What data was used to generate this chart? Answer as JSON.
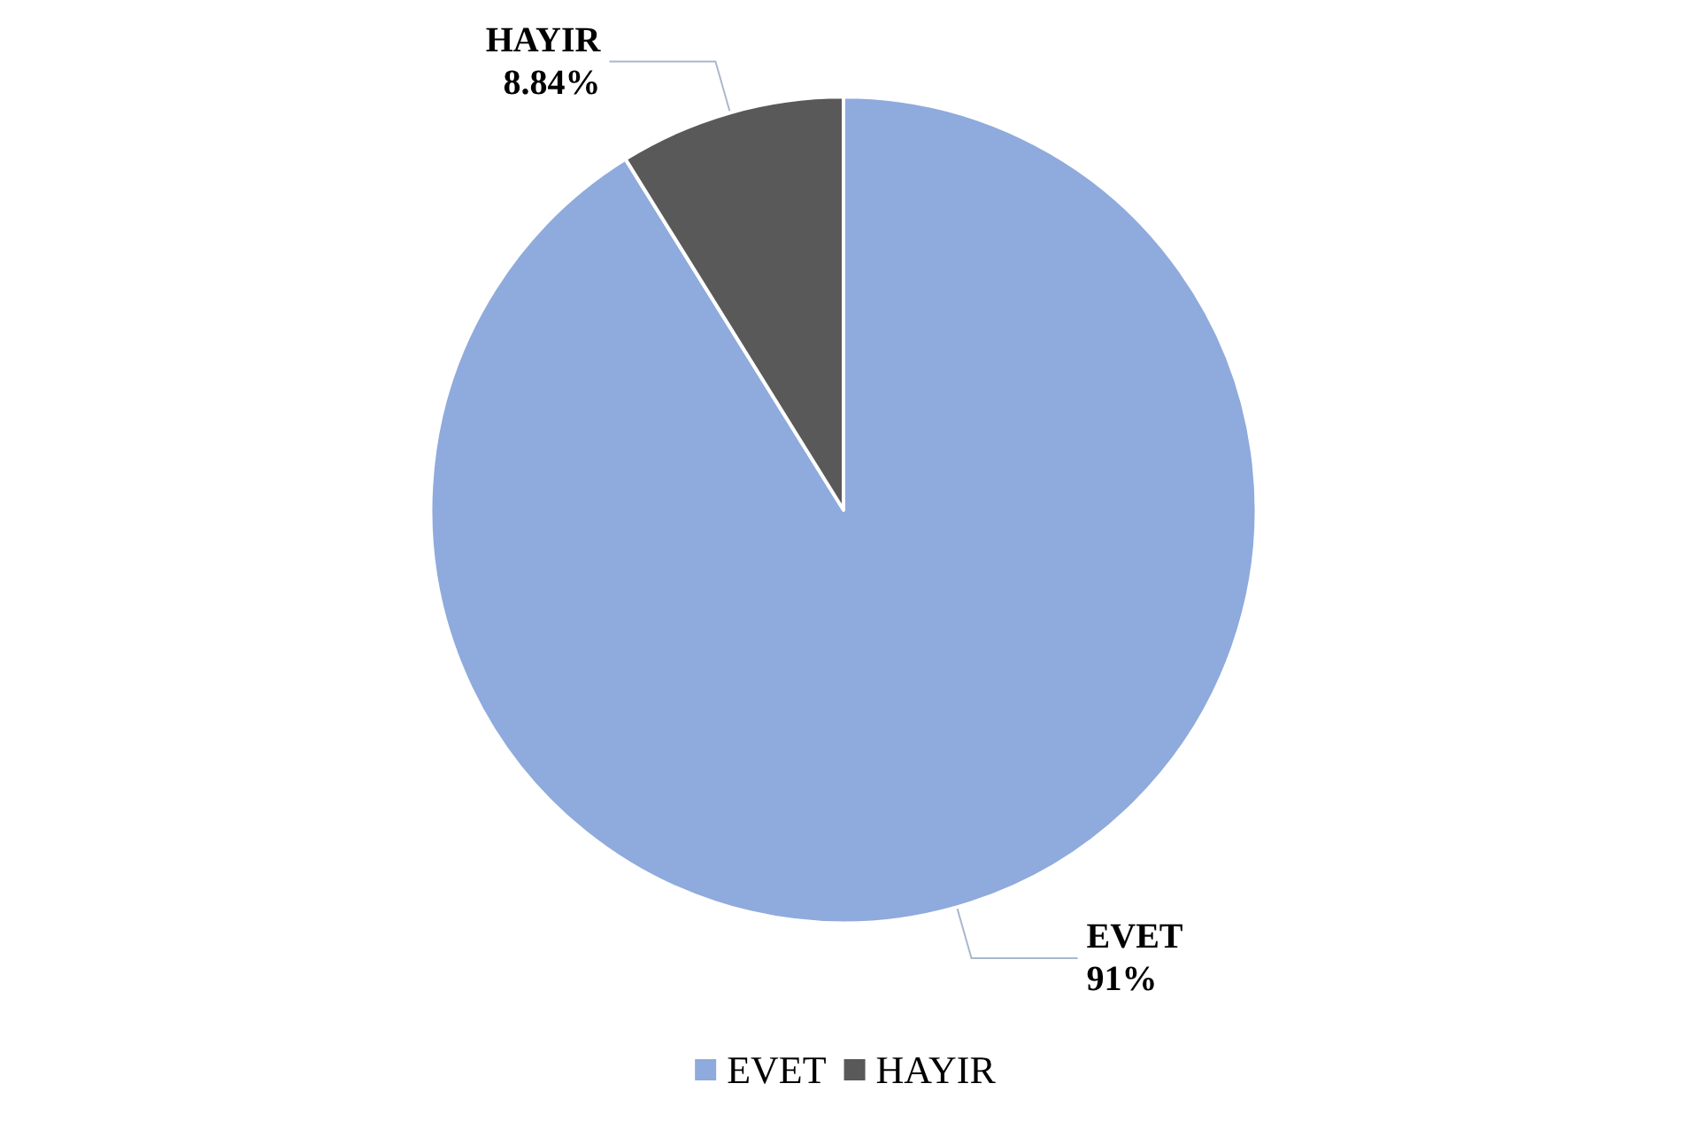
{
  "chart_data": {
    "type": "pie",
    "categories": [
      "EVET",
      "HAYIR"
    ],
    "values": [
      91,
      8.84
    ],
    "value_labels": [
      "91%",
      "8.84%"
    ],
    "colors": [
      "#8faadc",
      "#595959"
    ],
    "legend": "bottom"
  }
}
